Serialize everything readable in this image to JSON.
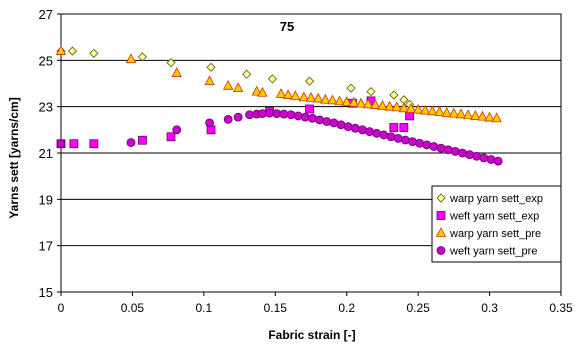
{
  "chart_data": {
    "type": "scatter",
    "title": "75",
    "xlabel": "Fabric strain [-]",
    "ylabel": "Yarns sett [yarns/cm]",
    "xlim": [
      0,
      0.35
    ],
    "ylim": [
      15,
      27
    ],
    "x_ticks": [
      0,
      0.05,
      0.1,
      0.15,
      0.2,
      0.25,
      0.3,
      0.35
    ],
    "x_tick_labels": [
      "0",
      "0.05",
      "0.1",
      "0.15",
      "0.2",
      "0.25",
      "0.3",
      "0.35"
    ],
    "y_ticks": [
      15,
      17,
      19,
      21,
      23,
      25,
      27
    ],
    "y_tick_labels": [
      "15",
      "17",
      "19",
      "21",
      "23",
      "25",
      "27"
    ],
    "grid": "horizontal",
    "legend_position": "bottom-right",
    "series": [
      {
        "name": "warp yarn sett_exp",
        "marker": "diamond",
        "color": "#ffff99",
        "points": [
          [
            0,
            25.4
          ],
          [
            0.008,
            25.4
          ],
          [
            0.023,
            25.3
          ],
          [
            0.057,
            25.15
          ],
          [
            0.077,
            24.9
          ],
          [
            0.105,
            24.7
          ],
          [
            0.13,
            24.4
          ],
          [
            0.148,
            24.2
          ],
          [
            0.174,
            24.1
          ],
          [
            0.203,
            23.8
          ],
          [
            0.217,
            23.65
          ],
          [
            0.233,
            23.5
          ],
          [
            0.24,
            23.3
          ],
          [
            0.244,
            23.1
          ]
        ]
      },
      {
        "name": "weft yarn sett_exp",
        "marker": "square",
        "color": "#ff00ff",
        "points": [
          [
            0,
            21.4
          ],
          [
            0.009,
            21.4
          ],
          [
            0.023,
            21.4
          ],
          [
            0.057,
            21.55
          ],
          [
            0.077,
            21.7
          ],
          [
            0.105,
            22.0
          ],
          [
            0.146,
            22.8
          ],
          [
            0.174,
            22.9
          ],
          [
            0.204,
            23.15
          ],
          [
            0.217,
            23.25
          ],
          [
            0.233,
            22.1
          ],
          [
            0.24,
            22.1
          ],
          [
            0.244,
            22.6
          ]
        ]
      },
      {
        "name": "warp yarn sett_pre",
        "marker": "triangle",
        "color": "#ffcc00",
        "points": [
          [
            0,
            25.4
          ],
          [
            0.049,
            25.05
          ],
          [
            0.081,
            24.45
          ],
          [
            0.104,
            24.1
          ],
          [
            0.117,
            23.9
          ],
          [
            0.124,
            23.8
          ],
          [
            0.137,
            23.65
          ],
          [
            0.141,
            23.6
          ],
          [
            0.154,
            23.55
          ],
          [
            0.159,
            23.5
          ],
          [
            0.164,
            23.45
          ],
          [
            0.17,
            23.4
          ],
          [
            0.175,
            23.38
          ],
          [
            0.18,
            23.35
          ],
          [
            0.185,
            23.3
          ],
          [
            0.19,
            23.27
          ],
          [
            0.195,
            23.23
          ],
          [
            0.2,
            23.2
          ],
          [
            0.205,
            23.17
          ],
          [
            0.21,
            23.13
          ],
          [
            0.215,
            23.1
          ],
          [
            0.22,
            23.07
          ],
          [
            0.225,
            23.03
          ],
          [
            0.23,
            23.0
          ],
          [
            0.235,
            22.97
          ],
          [
            0.24,
            22.93
          ],
          [
            0.245,
            22.9
          ],
          [
            0.25,
            22.87
          ],
          [
            0.255,
            22.83
          ],
          [
            0.26,
            22.8
          ],
          [
            0.265,
            22.77
          ],
          [
            0.27,
            22.73
          ],
          [
            0.275,
            22.7
          ],
          [
            0.28,
            22.67
          ],
          [
            0.285,
            22.63
          ],
          [
            0.29,
            22.6
          ],
          [
            0.295,
            22.57
          ],
          [
            0.3,
            22.53
          ],
          [
            0.305,
            22.5
          ]
        ]
      },
      {
        "name": "weft yarn sett_pre",
        "marker": "circle",
        "color": "#cc00cc",
        "points": [
          [
            0,
            21.4
          ],
          [
            0.049,
            21.45
          ],
          [
            0.081,
            22.0
          ],
          [
            0.104,
            22.3
          ],
          [
            0.117,
            22.45
          ],
          [
            0.124,
            22.55
          ],
          [
            0.132,
            22.65
          ],
          [
            0.137,
            22.68
          ],
          [
            0.141,
            22.7
          ],
          [
            0.146,
            22.72
          ],
          [
            0.151,
            22.7
          ],
          [
            0.156,
            22.68
          ],
          [
            0.161,
            22.65
          ],
          [
            0.166,
            22.6
          ],
          [
            0.171,
            22.55
          ],
          [
            0.176,
            22.5
          ],
          [
            0.181,
            22.43
          ],
          [
            0.186,
            22.36
          ],
          [
            0.191,
            22.3
          ],
          [
            0.196,
            22.22
          ],
          [
            0.201,
            22.14
          ],
          [
            0.206,
            22.07
          ],
          [
            0.211,
            22.0
          ],
          [
            0.216,
            21.92
          ],
          [
            0.221,
            21.85
          ],
          [
            0.226,
            21.78
          ],
          [
            0.231,
            21.7
          ],
          [
            0.236,
            21.63
          ],
          [
            0.241,
            21.56
          ],
          [
            0.246,
            21.49
          ],
          [
            0.251,
            21.42
          ],
          [
            0.256,
            21.35
          ],
          [
            0.261,
            21.28
          ],
          [
            0.266,
            21.21
          ],
          [
            0.271,
            21.14
          ],
          [
            0.276,
            21.07
          ],
          [
            0.281,
            21.0
          ],
          [
            0.286,
            20.93
          ],
          [
            0.291,
            20.86
          ],
          [
            0.296,
            20.79
          ],
          [
            0.301,
            20.72
          ],
          [
            0.306,
            20.65
          ]
        ]
      }
    ]
  }
}
